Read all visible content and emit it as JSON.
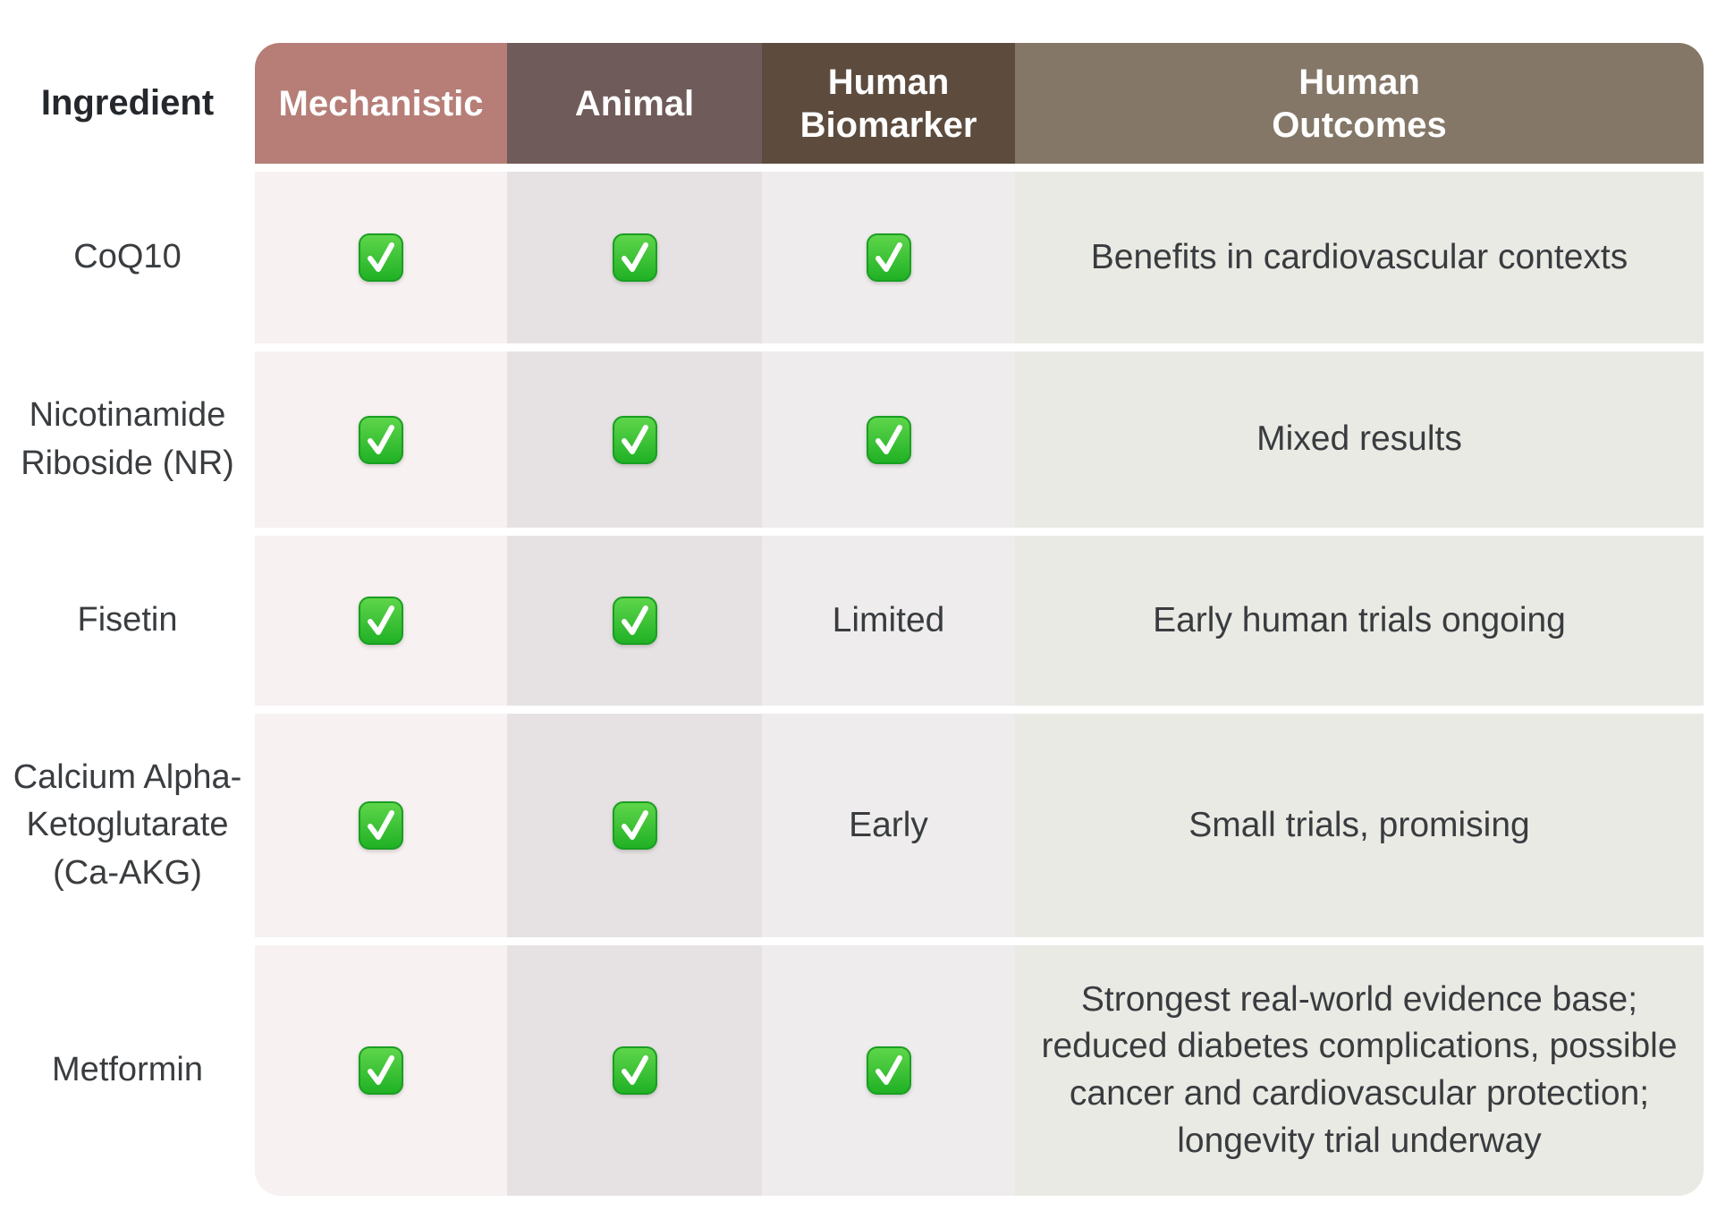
{
  "table": {
    "header": {
      "ingredient_label": "Ingredient",
      "text_color": "#ffffff",
      "columns": [
        {
          "id": "mechanistic",
          "label": "Mechanistic",
          "header_bg": "#b67e77",
          "body_bg": "#f7f1f1"
        },
        {
          "id": "animal",
          "label": "Animal",
          "header_bg": "#6f5b59",
          "body_bg": "#e6e2e3"
        },
        {
          "id": "human_biomarker",
          "label": "Human\nBiomarker",
          "header_bg": "#5d4c3e",
          "body_bg": "#eeecec"
        },
        {
          "id": "human_outcomes",
          "label": "Human\nOutcomes",
          "header_bg": "#847767",
          "body_bg": "#eaeae4"
        }
      ]
    },
    "check_icon": {
      "name": "green-check-icon",
      "fill_top": "#5fd64b",
      "fill_bottom": "#1fb024",
      "border": "#1a9e22",
      "mark_color": "#ffffff"
    },
    "rows": [
      {
        "ingredient": "CoQ10",
        "mechanistic": "check",
        "animal": "check",
        "human_biomarker": "check",
        "human_outcomes": "Benefits in cardiovascular contexts"
      },
      {
        "ingredient": "Nicotinamide Riboside (NR)",
        "mechanistic": "check",
        "animal": "check",
        "human_biomarker": "check",
        "human_outcomes": "Mixed results"
      },
      {
        "ingredient": "Fisetin",
        "mechanistic": "check",
        "animal": "check",
        "human_biomarker": "Limited",
        "human_outcomes": "Early human trials ongoing"
      },
      {
        "ingredient": "Calcium Alpha-Ketoglutarate (Ca-AKG)",
        "mechanistic": "check",
        "animal": "check",
        "human_biomarker": "Early",
        "human_outcomes": "Small trials, promising"
      },
      {
        "ingredient": "Metformin",
        "mechanistic": "check",
        "animal": "check",
        "human_biomarker": "check",
        "human_outcomes": "Strongest real-world evidence base; reduced diabetes complications, possible cancer and cardiovascular protection; longevity trial underway"
      }
    ]
  },
  "chart_data": {
    "type": "table",
    "columns": [
      "Ingredient",
      "Mechanistic",
      "Animal",
      "Human Biomarker",
      "Human Outcomes"
    ],
    "rows": [
      [
        "CoQ10",
        "check",
        "check",
        "check",
        "Benefits in cardiovascular contexts"
      ],
      [
        "Nicotinamide Riboside (NR)",
        "check",
        "check",
        "check",
        "Mixed results"
      ],
      [
        "Fisetin",
        "check",
        "check",
        "Limited",
        "Early human trials ongoing"
      ],
      [
        "Calcium Alpha-Ketoglutarate (Ca-AKG)",
        "check",
        "check",
        "Early",
        "Small trials, promising"
      ],
      [
        "Metformin",
        "check",
        "check",
        "check",
        "Strongest real-world evidence base; reduced diabetes complications, possible cancer and cardiovascular protection; longevity trial underway"
      ]
    ],
    "legend": "check = green checkmark (evidence present)",
    "header_colors": [
      "#ffffff",
      "#b67e77",
      "#6f5b59",
      "#5d4c3e",
      "#847767"
    ]
  }
}
